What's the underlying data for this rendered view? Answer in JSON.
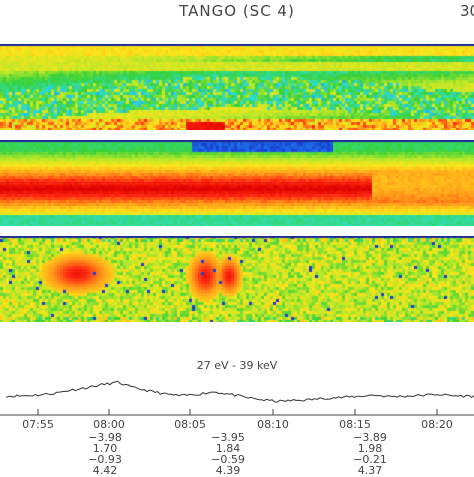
{
  "header": {
    "title": "TANGO (SC 4)",
    "corner": "30"
  },
  "colors": {
    "spectrogram_palette": [
      "#1a2cc8",
      "#1e9bff",
      "#2fe0d0",
      "#39d23a",
      "#b6e82a",
      "#ffe41a",
      "#ff9a1a",
      "#ff2a12",
      "#e00000"
    ],
    "frame": "#1c2a99",
    "line": "#333333"
  },
  "chart_data": [
    {
      "type": "heatmap",
      "panel": "spectrogram-1",
      "title": "",
      "description_levels": "normalized intensity 0 (blue) to 1 (red)"
    },
    {
      "type": "heatmap",
      "panel": "spectrogram-2",
      "title": ""
    },
    {
      "type": "heatmap",
      "panel": "spectrogram-3",
      "title": ""
    },
    {
      "type": "line",
      "title": "27 eV - 39 keV",
      "xlabel": "",
      "ylabel": "",
      "x": [
        "07:53",
        "07:54",
        "07:55",
        "07:56",
        "07:57",
        "07:58",
        "07:59",
        "08:00",
        "08:01",
        "08:02",
        "08:03",
        "08:04",
        "08:05",
        "08:06",
        "08:07",
        "08:08",
        "08:09",
        "08:10",
        "08:11",
        "08:12",
        "08:13",
        "08:14",
        "08:15",
        "08:16",
        "08:17",
        "08:18",
        "08:19",
        "08:20",
        "08:21",
        "08:22",
        "08:23"
      ],
      "values": [
        0.45,
        0.46,
        0.48,
        0.52,
        0.6,
        0.66,
        0.74,
        0.8,
        0.66,
        0.58,
        0.5,
        0.46,
        0.5,
        0.56,
        0.5,
        0.42,
        0.36,
        0.32,
        0.34,
        0.36,
        0.4,
        0.42,
        0.44,
        0.48,
        0.44,
        0.45,
        0.47,
        0.5,
        0.46,
        0.45,
        0.44
      ],
      "ylim": [
        0,
        1
      ],
      "xticks": [
        "07:55",
        "08:00",
        "08:05",
        "08:10",
        "08:15",
        "08:20"
      ]
    }
  ],
  "axis": {
    "ticks": [
      {
        "label": "07:55"
      },
      {
        "label": "08:00"
      },
      {
        "label": "08:05"
      },
      {
        "label": "08:10"
      },
      {
        "label": "08:15"
      },
      {
        "label": "08:20"
      }
    ]
  },
  "ephemeris": [
    {
      "tick": "08:00",
      "rows": [
        "−3.98",
        "1.70",
        "−0.93",
        "4.42"
      ]
    },
    {
      "tick": "08:05",
      "rows": [
        "−3.95",
        "1.84",
        "−0.59",
        "4.39"
      ]
    },
    {
      "tick": "08:15",
      "rows": [
        "−3.89",
        "1.98",
        "−0.21",
        "4.37"
      ]
    }
  ]
}
